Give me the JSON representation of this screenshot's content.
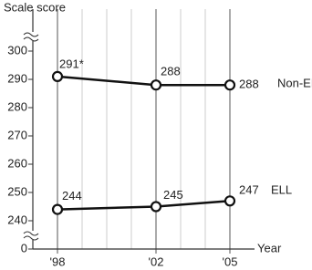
{
  "chart_data": {
    "type": "line",
    "y_label": "Scale score",
    "x_label": "Year",
    "x": [
      1998,
      2002,
      2005
    ],
    "xlim": [
      1997,
      2006
    ],
    "xticks": [
      {
        "value": 1998,
        "label": "'98"
      },
      {
        "value": 2002,
        "label": "'02"
      },
      {
        "value": 2005,
        "label": "'05"
      }
    ],
    "xminor": [
      1999,
      2000,
      2001,
      2003,
      2004
    ],
    "ylim": [
      240,
      300
    ],
    "yticks": [
      0,
      240,
      250,
      260,
      270,
      280,
      290,
      300
    ],
    "axis_break": true,
    "series": [
      {
        "name": "Non-ELL",
        "color": "#111111",
        "values": [
          291,
          288,
          288
        ],
        "value_labels": [
          "291*",
          "288",
          "288"
        ]
      },
      {
        "name": "ELL",
        "color": "#111111",
        "values": [
          244,
          245,
          247
        ],
        "value_labels": [
          "244",
          "245",
          "247"
        ]
      }
    ]
  }
}
